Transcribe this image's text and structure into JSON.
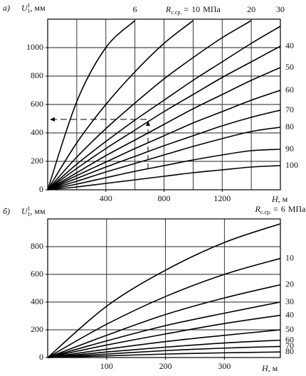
{
  "chart_data": [
    {
      "type": "line",
      "panel_label": "а)",
      "y_label": {
        "symbol": "U",
        "subscript": "1",
        "superscript": "1",
        "unit": ", мм"
      },
      "x_label": {
        "symbol": "H",
        "unit": ", м"
      },
      "r_label": {
        "symbol": "R",
        "subscript": "с.ср.",
        "relation": "=",
        "unit": "МПа"
      },
      "color": "#000000",
      "x": [
        0,
        200,
        400,
        600,
        800,
        1000,
        1200,
        1400,
        1600
      ],
      "xlim": [
        0,
        1600
      ],
      "ylim": [
        0,
        1200
      ],
      "xticks": [
        400,
        800,
        1200
      ],
      "yticks": [
        0,
        200,
        400,
        600,
        800,
        1000
      ],
      "xgrid": [
        200,
        400,
        600,
        800,
        1000,
        1200,
        1400
      ],
      "ygrid": [
        200,
        400,
        600,
        800,
        1000
      ],
      "series": [
        {
          "name": "6",
          "values": [
            0,
            620,
            1000,
            1190,
            null,
            null,
            null,
            null,
            null
          ]
        },
        {
          "name": "10",
          "values": [
            0,
            330,
            600,
            830,
            1030,
            1190,
            null,
            null,
            null
          ]
        },
        {
          "name": "20",
          "values": [
            0,
            230,
            430,
            610,
            780,
            930,
            1070,
            1190,
            null
          ]
        },
        {
          "name": "30",
          "values": [
            0,
            180,
            340,
            490,
            630,
            770,
            900,
            1030,
            1150
          ]
        },
        {
          "name": "40",
          "values": [
            0,
            150,
            290,
            420,
            550,
            670,
            790,
            900,
            1010
          ]
        },
        {
          "name": "50",
          "values": [
            0,
            120,
            240,
            350,
            460,
            570,
            670,
            770,
            860
          ]
        },
        {
          "name": "60",
          "values": [
            0,
            100,
            195,
            290,
            380,
            470,
            550,
            630,
            700
          ]
        },
        {
          "name": "70",
          "values": [
            0,
            80,
            160,
            235,
            310,
            380,
            450,
            510,
            560
          ]
        },
        {
          "name": "80",
          "values": [
            0,
            60,
            125,
            185,
            245,
            305,
            360,
            410,
            440
          ]
        },
        {
          "name": "90",
          "values": [
            0,
            40,
            85,
            130,
            170,
            210,
            245,
            275,
            285
          ]
        },
        {
          "name": "100",
          "values": [
            0,
            20,
            45,
            70,
            95,
            120,
            140,
            160,
            170
          ]
        }
      ]
    },
    {
      "type": "line",
      "panel_label": "б)",
      "y_label": {
        "symbol": "U",
        "subscript": "1",
        "superscript": "1",
        "unit": ", мм"
      },
      "x_label": {
        "symbol": "H",
        "unit": ", м"
      },
      "r_label": {
        "symbol": "R",
        "subscript": "с.ср.",
        "relation": "=",
        "unit": "МПа"
      },
      "color": "#000000",
      "x": [
        0,
        100,
        200,
        300,
        395
      ],
      "xlim": [
        0,
        395
      ],
      "ylim": [
        0,
        1000
      ],
      "xticks": [
        100,
        200,
        300
      ],
      "yticks": [
        0,
        200,
        400,
        600,
        800
      ],
      "xgrid": [
        100,
        200,
        300
      ],
      "ygrid": [
        200,
        400,
        600,
        800
      ],
      "series": [
        {
          "name": "6",
          "values": [
            0,
            370,
            630,
            830,
            965
          ]
        },
        {
          "name": "10",
          "values": [
            0,
            240,
            440,
            600,
            715
          ]
        },
        {
          "name": "20",
          "values": [
            0,
            160,
            310,
            430,
            525
          ]
        },
        {
          "name": "30",
          "values": [
            0,
            120,
            230,
            320,
            400
          ]
        },
        {
          "name": "40",
          "values": [
            0,
            90,
            170,
            245,
            305
          ]
        },
        {
          "name": "50",
          "values": [
            0,
            60,
            115,
            160,
            200
          ]
        },
        {
          "name": "60",
          "values": [
            0,
            40,
            75,
            105,
            125
          ]
        },
        {
          "name": "70",
          "values": [
            0,
            25,
            50,
            68,
            80
          ]
        },
        {
          "name": "80",
          "values": [
            0,
            12,
            25,
            34,
            40
          ]
        }
      ]
    }
  ]
}
